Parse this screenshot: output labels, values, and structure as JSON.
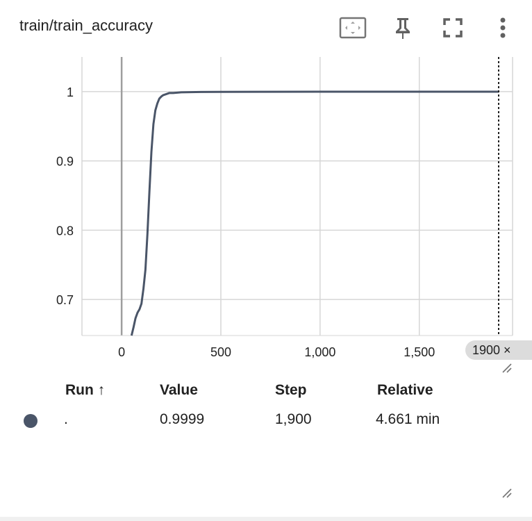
{
  "header": {
    "title": "train/train_accuracy",
    "icons": [
      "fit-domain-icon",
      "pin-icon",
      "fullscreen-icon",
      "more-vert-icon"
    ]
  },
  "colors": {
    "series": "#4a5568",
    "grid": "#d6d6d6",
    "axis": "#9e9e9e",
    "badge": "#dcdcdc"
  },
  "chart_data": {
    "type": "line",
    "title": "train/train_accuracy",
    "xlabel": "",
    "ylabel": "",
    "xlim": [
      -200,
      1970
    ],
    "ylim": [
      0.648,
      1.05
    ],
    "x_ticks": [
      0,
      500,
      1000,
      1500
    ],
    "x_tick_labels": [
      "0",
      "500",
      "1,000",
      "1,500"
    ],
    "y_ticks": [
      0.7,
      0.8,
      0.9,
      1
    ],
    "y_tick_labels": [
      "0.7",
      "0.8",
      "0.9",
      "1"
    ],
    "grid": true,
    "cursor_step": 1900,
    "cursor_label": "1900 ×",
    "series": [
      {
        "name": ".",
        "x": [
          50,
          60,
          70,
          80,
          90,
          100,
          110,
          120,
          130,
          140,
          150,
          160,
          170,
          180,
          190,
          200,
          210,
          220,
          230,
          240,
          260,
          300,
          400,
          500,
          700,
          1000,
          1300,
          1600,
          1900
        ],
        "y": [
          0.648,
          0.66,
          0.673,
          0.681,
          0.686,
          0.694,
          0.716,
          0.743,
          0.795,
          0.855,
          0.913,
          0.953,
          0.973,
          0.983,
          0.99,
          0.993,
          0.995,
          0.996,
          0.997,
          0.998,
          0.998,
          0.999,
          0.9995,
          0.9997,
          0.9998,
          0.9999,
          0.9999,
          0.9999,
          0.9999
        ]
      }
    ]
  },
  "table": {
    "headers": {
      "run": "Run ↑",
      "value": "Value",
      "step": "Step",
      "relative": "Relative"
    },
    "rows": [
      {
        "run": ".",
        "value": "0.9999",
        "step": "1,900",
        "relative": "4.661 min"
      }
    ]
  }
}
